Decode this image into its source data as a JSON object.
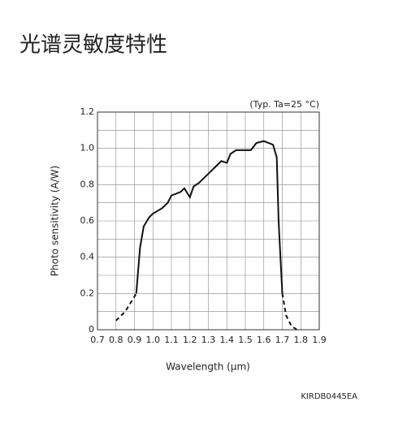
{
  "heading": "光谱灵敏度特性",
  "chart_data": {
    "type": "line",
    "annotation": "(Typ. Ta=25 °C)",
    "xlabel": "Wavelength (μm)",
    "ylabel": "Photo sensitivity (A/W)",
    "code": "KIRDB0445EA",
    "color": "#111111",
    "xlim": [
      0.7,
      1.9
    ],
    "ylim": [
      0,
      1.2
    ],
    "xticks": [
      0.7,
      0.8,
      0.9,
      {
        "value": 1,
        "label": "1.0"
      },
      1.1,
      1.2,
      1.3,
      1.4,
      1.5,
      1.6,
      1.7,
      1.8,
      1.9
    ],
    "yticks": [
      0,
      0.2,
      0.4,
      0.6,
      0.8,
      {
        "value": 1,
        "label": "1.0"
      },
      1.2
    ],
    "y_minor_grid": [
      0.1,
      0.3,
      0.5,
      0.7,
      0.9,
      1.1
    ],
    "grid": true,
    "series": [
      {
        "dash": true,
        "x": [
          0.8,
          0.85,
          0.91
        ],
        "values": [
          0.05,
          0.1,
          0.2
        ]
      },
      {
        "dash": false,
        "x": [
          0.91,
          0.93,
          0.95,
          0.98,
          1.0,
          1.05,
          1.08,
          1.1,
          1.15,
          1.17,
          1.2,
          1.22,
          1.25,
          1.3,
          1.35,
          1.37,
          1.4,
          1.42,
          1.45,
          1.5,
          1.53,
          1.56,
          1.6,
          1.65,
          1.67,
          1.68,
          1.7
        ],
        "values": [
          0.2,
          0.45,
          0.57,
          0.62,
          0.64,
          0.67,
          0.7,
          0.74,
          0.76,
          0.78,
          0.73,
          0.79,
          0.81,
          0.86,
          0.91,
          0.93,
          0.92,
          0.97,
          0.99,
          0.99,
          0.99,
          1.03,
          1.04,
          1.02,
          0.95,
          0.6,
          0.2
        ]
      },
      {
        "dash": true,
        "x": [
          1.7,
          1.72,
          1.75,
          1.78
        ],
        "values": [
          0.2,
          0.08,
          0.02,
          0
        ]
      }
    ]
  }
}
